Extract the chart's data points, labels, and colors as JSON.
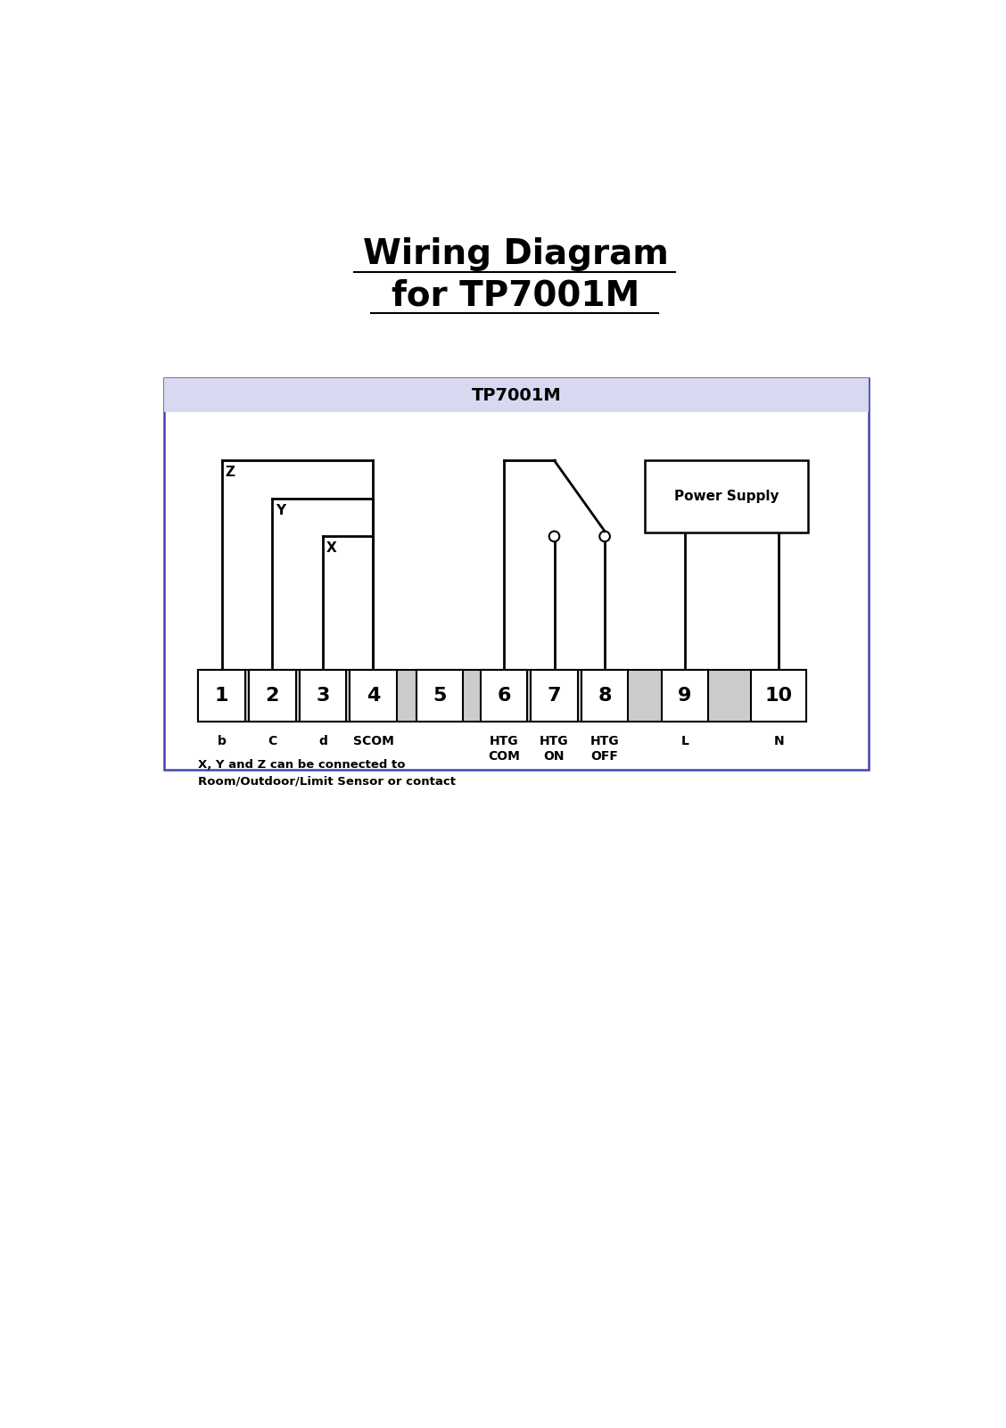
{
  "title_line1": "Wiring Diagram",
  "title_line2": "for TP7001M",
  "box_title": "TP7001M",
  "box_bg": "#d8d8f0",
  "box_border": "#4444aa",
  "terminal_numbers": [
    "1",
    "2",
    "3",
    "4",
    "5",
    "6",
    "7",
    "8",
    "9",
    "10"
  ],
  "sub_labels": [
    "b",
    "C",
    "d",
    "SCOM",
    "",
    "HTG",
    "HTG",
    "HTG",
    "L",
    "N"
  ],
  "sub_labels2": [
    "",
    "",
    "",
    "",
    "",
    "COM",
    "ON",
    "OFF",
    "",
    ""
  ],
  "note": "X, Y and Z can be connected to\nRoom/Outdoor/Limit Sensor or contact",
  "power_supply_label": "Power Supply",
  "background": "#ffffff",
  "terminal_color": "#ffffff",
  "terminal_border": "#000000"
}
